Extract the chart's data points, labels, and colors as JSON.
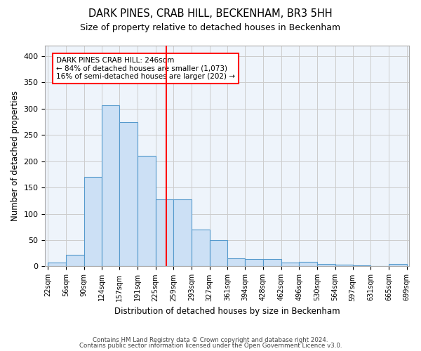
{
  "title": "DARK PINES, CRAB HILL, BECKENHAM, BR3 5HH",
  "subtitle": "Size of property relative to detached houses in Beckenham",
  "xlabel": "Distribution of detached houses by size in Beckenham",
  "ylabel": "Number of detached properties",
  "bar_color": "#cce0f5",
  "bar_edge_color": "#5599cc",
  "grid_color": "#cccccc",
  "bg_color": "#eef4fb",
  "red_line_x": 246,
  "annotation_title": "DARK PINES CRAB HILL: 246sqm",
  "annotation_line1": "← 84% of detached houses are smaller (1,073)",
  "annotation_line2": "16% of semi-detached houses are larger (202) →",
  "footer1": "Contains HM Land Registry data © Crown copyright and database right 2024.",
  "footer2": "Contains public sector information licensed under the Open Government Licence v3.0.",
  "bin_edges": [
    22,
    56,
    90,
    124,
    157,
    191,
    225,
    259,
    293,
    327,
    361,
    394,
    428,
    462,
    496,
    530,
    564,
    597,
    631,
    665,
    699
  ],
  "bar_heights": [
    7,
    22,
    170,
    307,
    275,
    210,
    127,
    127,
    70,
    50,
    15,
    14,
    14,
    7,
    8,
    4,
    3,
    2,
    0,
    4
  ],
  "ylim": [
    0,
    420
  ],
  "yticks": [
    0,
    50,
    100,
    150,
    200,
    250,
    300,
    350,
    400
  ]
}
